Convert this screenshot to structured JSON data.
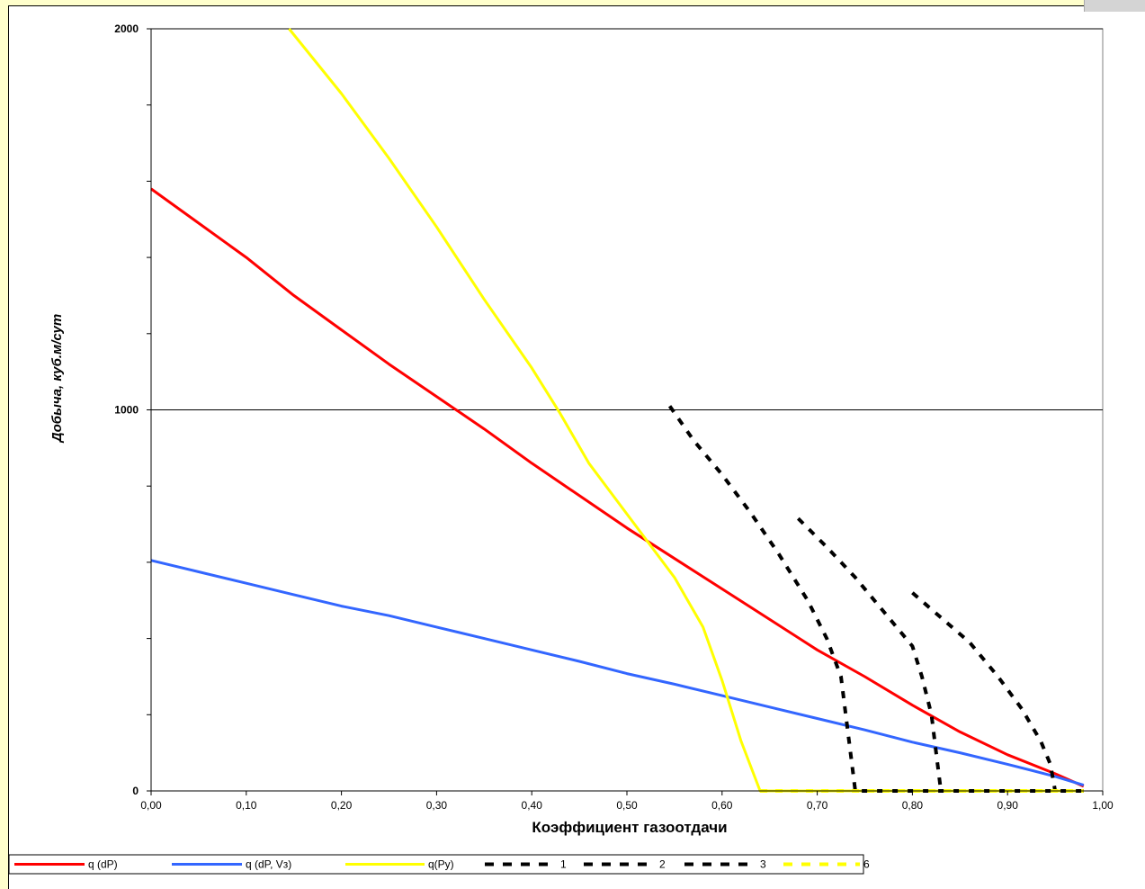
{
  "chart_data": {
    "type": "line",
    "xlabel": "Коэффициент газоотдачи",
    "ylabel": "Добыча, куб.м/сут",
    "xlim": [
      0,
      1.0
    ],
    "ylim": [
      0,
      2000
    ],
    "x_ticks": [
      "0,00",
      "0,10",
      "0,20",
      "0,30",
      "0,40",
      "0,50",
      "0,60",
      "0,70",
      "0,80",
      "0,90",
      "1,00"
    ],
    "y_ticks": [
      "0",
      "1000",
      "2000"
    ],
    "grid": "horizontal major lines at 1000 and 2000",
    "legend_position": "bottom-left",
    "series": [
      {
        "name": "q (dP)",
        "color": "#ff0000",
        "style": "solid",
        "points": [
          [
            0.0,
            1580
          ],
          [
            0.05,
            1490
          ],
          [
            0.1,
            1400
          ],
          [
            0.15,
            1300
          ],
          [
            0.2,
            1210
          ],
          [
            0.25,
            1120
          ],
          [
            0.3,
            1035
          ],
          [
            0.35,
            950
          ],
          [
            0.4,
            860
          ],
          [
            0.45,
            775
          ],
          [
            0.5,
            690
          ],
          [
            0.55,
            610
          ],
          [
            0.6,
            530
          ],
          [
            0.65,
            450
          ],
          [
            0.7,
            370
          ],
          [
            0.75,
            300
          ],
          [
            0.8,
            225
          ],
          [
            0.85,
            155
          ],
          [
            0.9,
            95
          ],
          [
            0.95,
            45
          ],
          [
            0.98,
            12
          ]
        ]
      },
      {
        "name": "q (dP, Vз)",
        "color": "#3366ff",
        "style": "solid",
        "points": [
          [
            0.0,
            605
          ],
          [
            0.05,
            575
          ],
          [
            0.1,
            545
          ],
          [
            0.15,
            515
          ],
          [
            0.2,
            485
          ],
          [
            0.25,
            460
          ],
          [
            0.3,
            430
          ],
          [
            0.35,
            400
          ],
          [
            0.4,
            370
          ],
          [
            0.45,
            340
          ],
          [
            0.5,
            308
          ],
          [
            0.55,
            280
          ],
          [
            0.6,
            250
          ],
          [
            0.65,
            220
          ],
          [
            0.7,
            190
          ],
          [
            0.75,
            160
          ],
          [
            0.8,
            128
          ],
          [
            0.85,
            100
          ],
          [
            0.9,
            70
          ],
          [
            0.95,
            38
          ],
          [
            0.98,
            15
          ]
        ]
      },
      {
        "name": "q(Py)",
        "color": "#ffff00",
        "style": "solid",
        "points": [
          [
            0.145,
            2000
          ],
          [
            0.2,
            1830
          ],
          [
            0.25,
            1660
          ],
          [
            0.3,
            1480
          ],
          [
            0.35,
            1290
          ],
          [
            0.4,
            1110
          ],
          [
            0.43,
            990
          ],
          [
            0.46,
            860
          ],
          [
            0.49,
            760
          ],
          [
            0.52,
            660
          ],
          [
            0.55,
            560
          ],
          [
            0.58,
            430
          ],
          [
            0.6,
            290
          ],
          [
            0.62,
            130
          ],
          [
            0.64,
            0
          ],
          [
            0.98,
            0
          ]
        ]
      },
      {
        "name": "1",
        "color": "#000000",
        "style": "dashed",
        "points": [
          [
            0.545,
            1010
          ],
          [
            0.57,
            920
          ],
          [
            0.6,
            830
          ],
          [
            0.63,
            730
          ],
          [
            0.66,
            620
          ],
          [
            0.69,
            500
          ],
          [
            0.71,
            400
          ],
          [
            0.725,
            300
          ],
          [
            0.73,
            200
          ],
          [
            0.735,
            100
          ],
          [
            0.74,
            0
          ],
          [
            0.98,
            0
          ]
        ]
      },
      {
        "name": "2",
        "color": "#000000",
        "style": "dashed",
        "points": [
          [
            0.68,
            715
          ],
          [
            0.71,
            640
          ],
          [
            0.74,
            560
          ],
          [
            0.77,
            470
          ],
          [
            0.8,
            380
          ],
          [
            0.81,
            300
          ],
          [
            0.82,
            200
          ],
          [
            0.825,
            100
          ],
          [
            0.83,
            0
          ],
          [
            0.98,
            0
          ]
        ]
      },
      {
        "name": "3",
        "color": "#000000",
        "style": "dashed",
        "points": [
          [
            0.8,
            520
          ],
          [
            0.83,
            455
          ],
          [
            0.86,
            390
          ],
          [
            0.89,
            300
          ],
          [
            0.915,
            215
          ],
          [
            0.935,
            130
          ],
          [
            0.945,
            70
          ],
          [
            0.95,
            0
          ],
          [
            0.98,
            0
          ]
        ]
      },
      {
        "name": "6",
        "color": "#ffff00",
        "style": "dashed",
        "points": [
          [
            0.64,
            0
          ],
          [
            0.98,
            0
          ]
        ]
      }
    ]
  }
}
